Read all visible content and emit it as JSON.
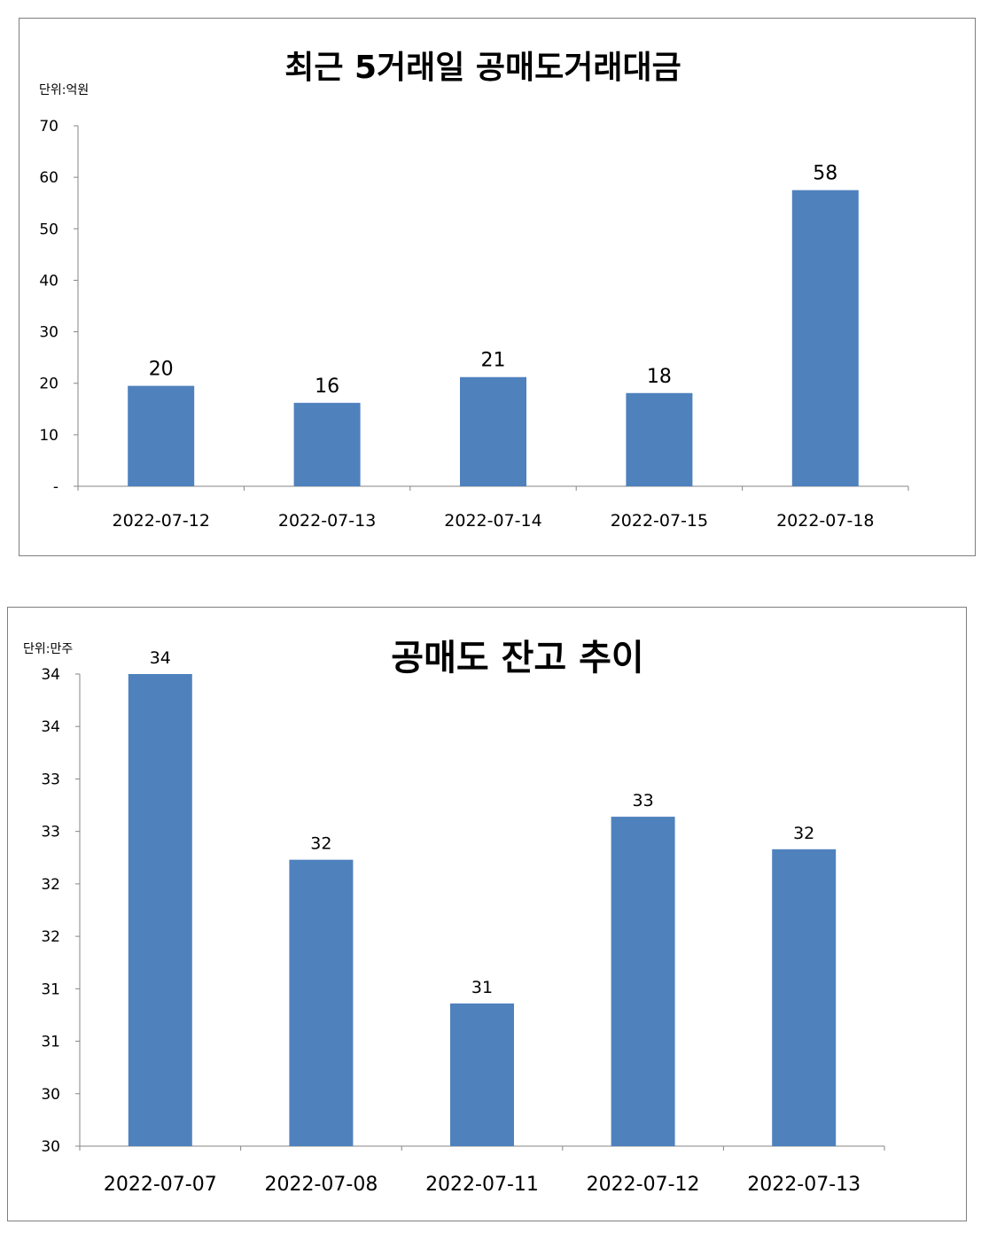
{
  "chart_data": [
    {
      "type": "bar",
      "title": "최근 5거래일 공매도거래대금",
      "unit_label": "단위:억원",
      "categories": [
        "2022-07-12",
        "2022-07-13",
        "2022-07-14",
        "2022-07-15",
        "2022-07-18"
      ],
      "values": [
        19.5,
        16.2,
        21.2,
        18.1,
        57.5
      ],
      "data_labels": [
        "20",
        "16",
        "21",
        "18",
        "58"
      ],
      "ylim": [
        0,
        70
      ],
      "y_ticks": [
        0,
        10,
        20,
        30,
        40,
        50,
        60,
        70
      ],
      "y_tick_labels": [
        "-",
        "10",
        "20",
        "30",
        "40",
        "50",
        "60",
        "70"
      ],
      "bar_color": "#4f81bd",
      "grid": false,
      "legend": "none"
    },
    {
      "type": "bar",
      "title": "공매도 잔고 추이",
      "unit_label": "단위:만주",
      "categories": [
        "2022-07-07",
        "2022-07-08",
        "2022-07-11",
        "2022-07-12",
        "2022-07-13"
      ],
      "values": [
        34.0,
        32.23,
        30.86,
        32.64,
        32.33
      ],
      "data_labels": [
        "34",
        "32",
        "31",
        "33",
        "32"
      ],
      "ylim": [
        29.5,
        34.0
      ],
      "y_ticks": [
        29.5,
        30.0,
        30.5,
        31.0,
        31.5,
        32.0,
        32.5,
        33.0,
        33.5,
        34.0
      ],
      "y_tick_labels": [
        "30",
        "30",
        "31",
        "31",
        "32",
        "32",
        "33",
        "33",
        "34",
        "34"
      ],
      "bar_color": "#4f81bd",
      "grid": false,
      "legend": "none"
    }
  ]
}
